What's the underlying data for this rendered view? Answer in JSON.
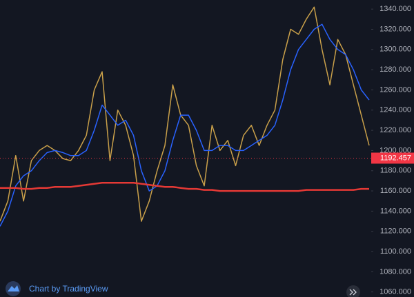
{
  "chart_data": {
    "type": "line",
    "ylim": [
      1055,
      1349
    ],
    "yticks": [
      {
        "value": 1060,
        "label": "1060.000"
      },
      {
        "value": 1080,
        "label": "1080.000"
      },
      {
        "value": 1100,
        "label": "1100.000"
      },
      {
        "value": 1120,
        "label": "1120.000"
      },
      {
        "value": 1140,
        "label": "1140.000"
      },
      {
        "value": 1160,
        "label": "1160.000"
      },
      {
        "value": 1180,
        "label": "1180.000"
      },
      {
        "value": 1200,
        "label": "1200.000"
      },
      {
        "value": 1220,
        "label": "1220.000"
      },
      {
        "value": 1240,
        "label": "1240.000"
      },
      {
        "value": 1260,
        "label": "1260.000"
      },
      {
        "value": 1280,
        "label": "1280.000"
      },
      {
        "value": 1300,
        "label": "1300.000"
      },
      {
        "value": 1320,
        "label": "1320.000"
      },
      {
        "value": 1340,
        "label": "1340.000"
      }
    ],
    "series": [
      {
        "color": "#c9a04a",
        "values": [
          1130,
          1150,
          1195,
          1150,
          1190,
          1200,
          1205,
          1200,
          1192,
          1190,
          1200,
          1215,
          1260,
          1278,
          1190,
          1240,
          1225,
          1195,
          1130,
          1150,
          1180,
          1205,
          1265,
          1235,
          1225,
          1185,
          1165,
          1225,
          1200,
          1210,
          1185,
          1215,
          1225,
          1205,
          1225,
          1240,
          1290,
          1320,
          1315,
          1330,
          1342,
          1300,
          1265,
          1310,
          1295,
          1265,
          1235,
          1205
        ]
      },
      {
        "color": "#2962ff",
        "values": [
          1125,
          1140,
          1165,
          1175,
          1180,
          1190,
          1198,
          1200,
          1198,
          1195,
          1195,
          1200,
          1220,
          1245,
          1235,
          1225,
          1230,
          1215,
          1180,
          1160,
          1165,
          1180,
          1210,
          1235,
          1235,
          1220,
          1200,
          1200,
          1205,
          1205,
          1200,
          1200,
          1205,
          1210,
          1215,
          1225,
          1250,
          1280,
          1300,
          1310,
          1320,
          1325,
          1310,
          1300,
          1295,
          1280,
          1260,
          1250
        ]
      },
      {
        "color": "#e53935",
        "values": [
          1163,
          1163,
          1163,
          1162,
          1162,
          1163,
          1163,
          1164,
          1164,
          1164,
          1165,
          1166,
          1167,
          1168,
          1168,
          1168,
          1168,
          1168,
          1167,
          1166,
          1165,
          1164,
          1164,
          1163,
          1162,
          1162,
          1161,
          1161,
          1160,
          1160,
          1160,
          1160,
          1160,
          1160,
          1160,
          1160,
          1160,
          1160,
          1160,
          1161,
          1161,
          1161,
          1161,
          1161,
          1161,
          1161,
          1162,
          1162
        ]
      }
    ],
    "last_price": 1192.457,
    "last_price_color": "#f23645",
    "watermark": "Chart by TradingView"
  }
}
